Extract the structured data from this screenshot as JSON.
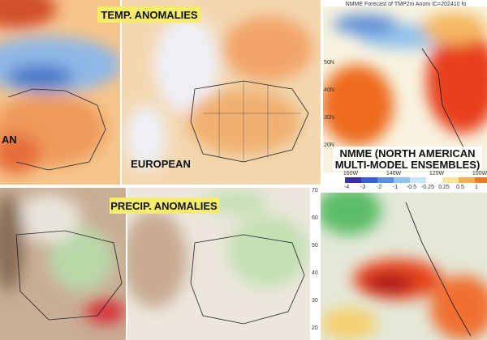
{
  "labels": {
    "temp": "TEMP. ANOMALIES",
    "european": "EUROPEAN",
    "precip": "PRECIP. ANOMALIES",
    "left_cut": "AN",
    "nmme": [
      "NMME (NORTH AMERICAN",
      "MULTI-MODEL ENSEMBLES)"
    ]
  },
  "nmme_header": "NMME Forecast of TMP2m Anom IC=202410 fo",
  "lat_labels": [
    "50N",
    "40N",
    "30N",
    "20N"
  ],
  "lon_labels": [
    "160W",
    "140W",
    "120W",
    "100W"
  ],
  "colorbar_labels": [
    "-4",
    "-3",
    "-2",
    "-1",
    "-0.5",
    "-0.25",
    "0.25",
    "0.5",
    "1"
  ],
  "right_lat_labels": [
    "70",
    "60",
    "50",
    "40",
    "30",
    "20"
  ]
}
